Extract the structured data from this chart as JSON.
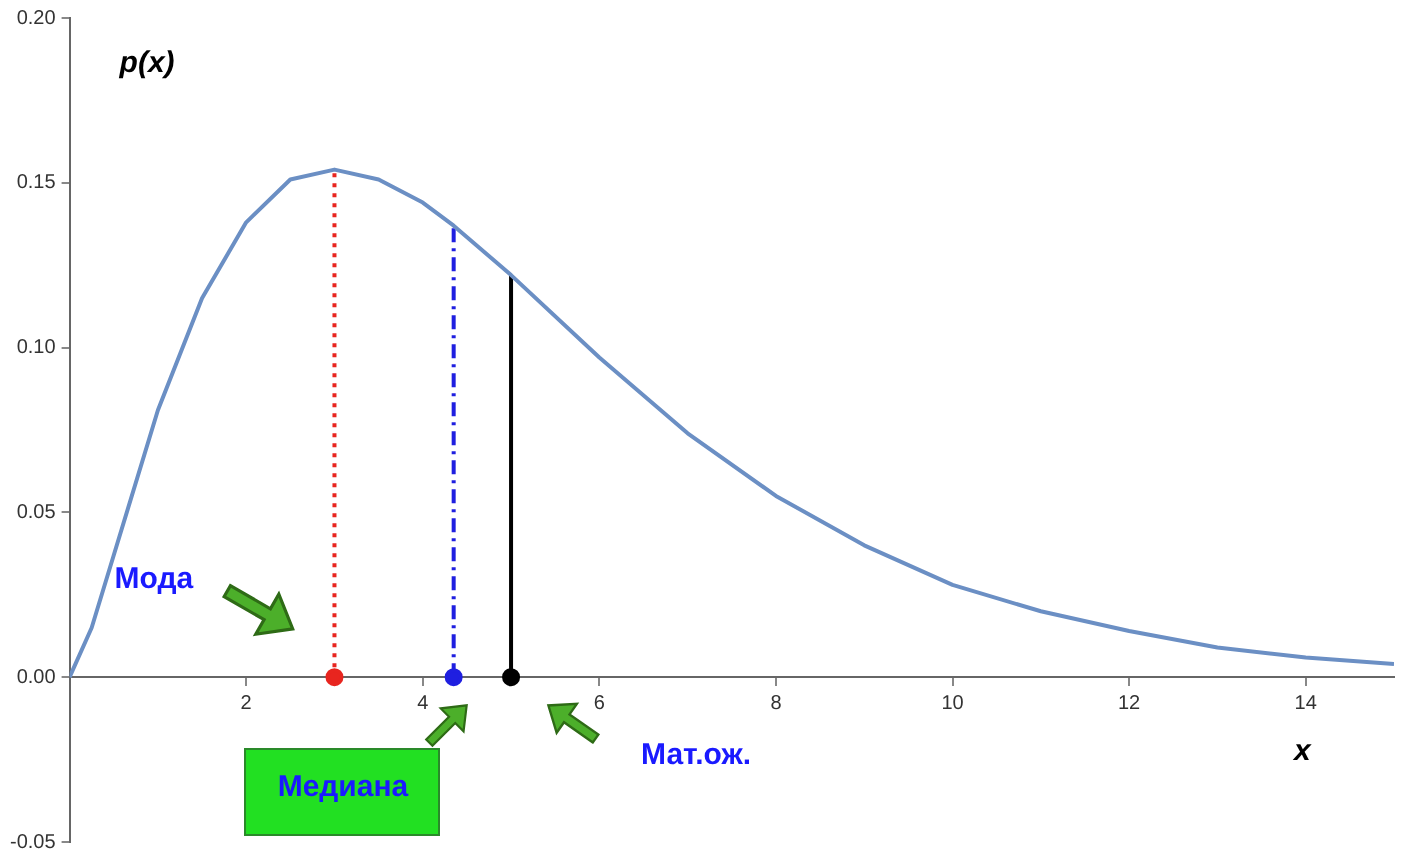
{
  "chart_data": {
    "type": "line",
    "xlabel": "x",
    "ylabel": "p(x)",
    "x": [
      0,
      0.25,
      0.5,
      1,
      1.5,
      2,
      2.5,
      3,
      3.5,
      4,
      4.35,
      5,
      6,
      7,
      8,
      9,
      10,
      11,
      12,
      13,
      14,
      15
    ],
    "xlim": [
      0,
      15
    ],
    "xticks": [
      2,
      4,
      6,
      8,
      10,
      12,
      14
    ],
    "ylim": [
      -0.05,
      0.2
    ],
    "yticks": [
      {
        "value": -0.05,
        "label": "-0.05"
      },
      {
        "value": 0,
        "label": "0.00"
      },
      {
        "value": 0.05,
        "label": "0.05"
      },
      {
        "value": 0.1,
        "label": "0.10"
      },
      {
        "value": 0.15,
        "label": "0.15"
      },
      {
        "value": 0.2,
        "label": "0.20"
      }
    ],
    "grid": false,
    "legend": false,
    "series": [
      {
        "color": "#6b8fc4",
        "line_style": "solid",
        "marker": "none",
        "values": [
          0,
          0.015,
          0.037,
          0.081,
          0.115,
          0.138,
          0.151,
          0.154,
          0.151,
          0.144,
          0.137,
          0.122,
          0.097,
          0.074,
          0.055,
          0.04,
          0.028,
          0.02,
          0.014,
          0.009,
          0.006,
          0.004
        ]
      },
      {
        "type": "line",
        "x": [
          3,
          3
        ],
        "values": [
          0,
          0.154
        ],
        "color": "#e8251f",
        "line_style": "dotted",
        "marker": "circle"
      },
      {
        "type": "line",
        "x": [
          4.35,
          4.35
        ],
        "values": [
          0,
          0.137
        ],
        "color": "#1f1fe0",
        "line_style": "dashdot",
        "marker": "circle"
      },
      {
        "type": "line",
        "x": [
          5,
          5
        ],
        "values": [
          0,
          0.122
        ],
        "color": "#000000",
        "line_style": "solid",
        "marker": "circle"
      }
    ],
    "annotations": [
      "Мода",
      "Медиана",
      "Мат.ож."
    ]
  }
}
